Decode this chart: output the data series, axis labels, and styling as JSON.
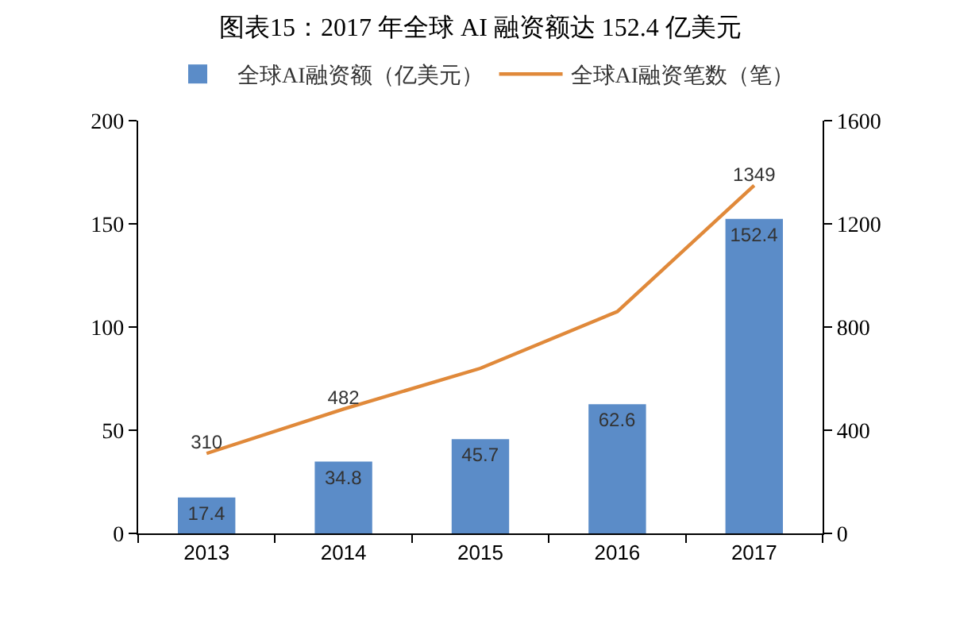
{
  "chart_data": {
    "type": "bar",
    "title": "图表15：2017 年全球 AI 融资额达 152.4 亿美元",
    "categories": [
      "2013",
      "2014",
      "2015",
      "2016",
      "2017"
    ],
    "series": [
      {
        "name": "全球AI融资额（亿美元）",
        "color": "#5b8cc8",
        "values": [
          17.4,
          34.8,
          45.7,
          62.6,
          152.4
        ],
        "value_labels": [
          "17.4",
          "34.8",
          "45.7",
          "62.6",
          "152.4"
        ]
      },
      {
        "name": "全球AI融资笔数（笔）",
        "type": "line",
        "axis": "y2",
        "color": "#e0893a",
        "values": [
          310,
          482,
          640,
          860,
          1349
        ],
        "value_labels": [
          "310",
          "482",
          null,
          null,
          "1349"
        ]
      }
    ],
    "ylim": [
      0,
      200
    ],
    "yticks": [
      0,
      50,
      100,
      150,
      200
    ],
    "y2lim": [
      0,
      1600
    ],
    "y2ticks": [
      0,
      400,
      800,
      1200,
      1600
    ],
    "grid": false,
    "legend": "top",
    "marker": "none"
  }
}
